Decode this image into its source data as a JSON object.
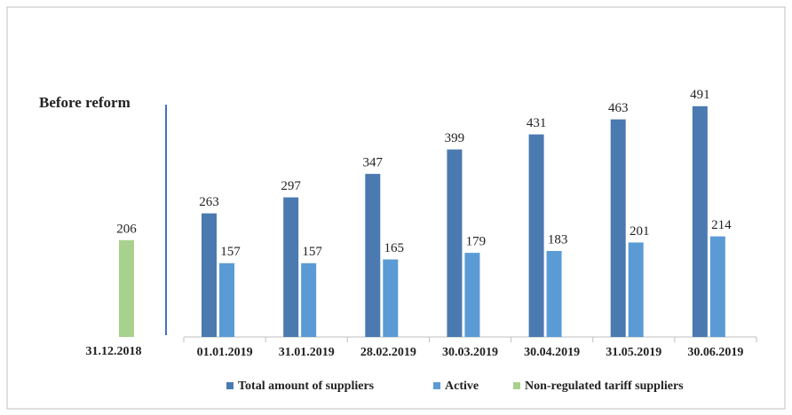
{
  "chart_data": {
    "type": "bar",
    "annotation": "Before reform",
    "categories": [
      "31.12.2018",
      "01.01.2019",
      "31.01.2019",
      "28.02.2019",
      "30.03.2019",
      "30.04.2019",
      "31.05.2019",
      "30.06.2019"
    ],
    "series": [
      {
        "name": "Total amount of suppliers",
        "color": "#4a7ab0",
        "values": [
          null,
          263,
          297,
          347,
          399,
          431,
          463,
          491
        ]
      },
      {
        "name": "Active",
        "color": "#5b9bd5",
        "values": [
          null,
          157,
          157,
          165,
          179,
          183,
          201,
          214
        ]
      },
      {
        "name": "Non-regulated tariff suppliers",
        "color": "#a9d18e",
        "values": [
          206,
          null,
          null,
          null,
          null,
          null,
          null,
          null
        ]
      }
    ]
  }
}
